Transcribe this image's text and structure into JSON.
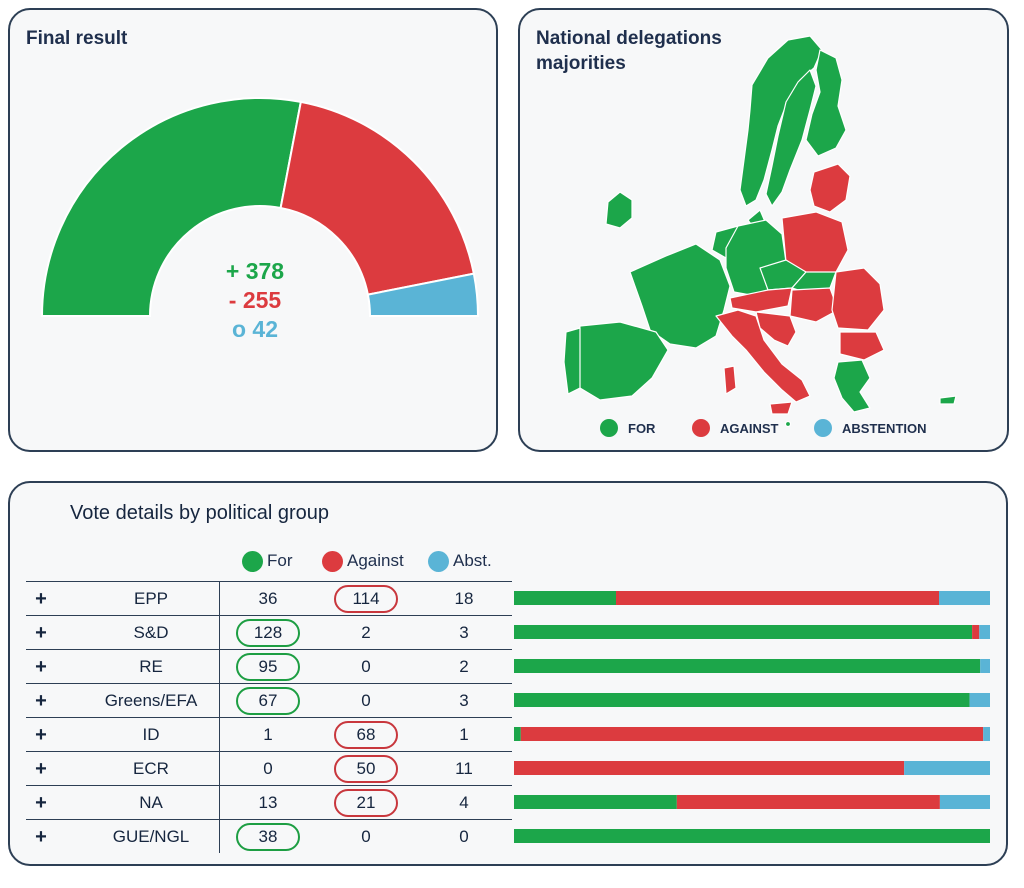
{
  "colors": {
    "for": "#1ca64a",
    "against": "#dc3b3f",
    "abstention": "#5ab4d6"
  },
  "final_result": {
    "title": "Final result",
    "for_text": "+ 378",
    "against_text": "- 255",
    "abstention_text": "o 42"
  },
  "map": {
    "title": "National delegations majorities",
    "legend": {
      "for": "FOR",
      "against": "AGAINST",
      "abstention": "ABSTENTION"
    }
  },
  "groups": {
    "title": "Vote details by political group",
    "headers": {
      "for": "For",
      "against": "Against",
      "abstention": "Abst."
    },
    "expand_symbol": "+"
  },
  "chart_data": [
    {
      "type": "pie",
      "variant": "semicircle",
      "categories": [
        "For",
        "Against",
        "Abstention"
      ],
      "values": [
        378,
        255,
        42
      ]
    },
    {
      "type": "bar",
      "orientation": "horizontal",
      "stacked": true,
      "normalized": true,
      "title": "Vote details by political group",
      "categories": [
        "EPP",
        "S&D",
        "RE",
        "Greens/EFA",
        "ID",
        "ECR",
        "NA",
        "GUE/NGL"
      ],
      "series": [
        {
          "name": "For",
          "values": [
            36,
            128,
            95,
            67,
            1,
            0,
            13,
            38
          ]
        },
        {
          "name": "Against",
          "values": [
            114,
            2,
            0,
            0,
            68,
            50,
            21,
            0
          ]
        },
        {
          "name": "Abst.",
          "values": [
            18,
            3,
            2,
            3,
            1,
            11,
            4,
            0
          ]
        }
      ],
      "highlight": [
        "against",
        "for",
        "for",
        "for",
        "against",
        "against",
        "against",
        "for"
      ]
    }
  ]
}
